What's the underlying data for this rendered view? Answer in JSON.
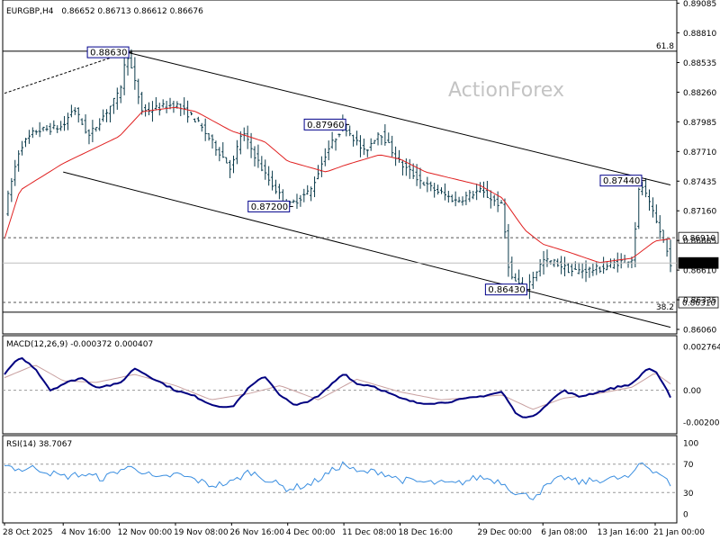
{
  "header": {
    "symbol": "EURGBP,H4",
    "ohlc": "0.86652 0.86713 0.86612 0.86676",
    "watermark": "ActionForex"
  },
  "chart_data": [
    {
      "type": "candlestick",
      "series_name": "EURGBP,H4",
      "x_ticks": [
        "28 Oct 2025",
        "4 Nov 16:00",
        "12 Nov 00:00",
        "19 Nov 08:00",
        "26 Nov 16:00",
        "4 Dec 00:00",
        "11 Dec 08:00",
        "18 Dec 16:00",
        "29 Dec 00:00",
        "6 Jan 08:00",
        "13 Jan 16:00",
        "21 Jan 00:00"
      ],
      "y_ticks": [
        "0.89085",
        "0.88810",
        "0.88535",
        "0.88260",
        "0.87985",
        "0.87710",
        "0.87435",
        "0.87160",
        "0.86885",
        "0.86610",
        "0.86335",
        "0.86060"
      ],
      "ylim": [
        0.8606,
        0.8909
      ],
      "close_path_waypoints": [
        {
          "x": "28 Oct 2025",
          "y": 0.8716
        },
        {
          "x": "30 Oct 2025",
          "y": 0.8775
        },
        {
          "x": "1 Nov 2025",
          "y": 0.879
        },
        {
          "x": "4 Nov 16:00",
          "y": 0.8794
        },
        {
          "x": "6 Nov 2025",
          "y": 0.8812
        },
        {
          "x": "8 Nov 2025",
          "y": 0.8785
        },
        {
          "x": "12 Nov 00:00",
          "y": 0.8825
        },
        {
          "x": "13 Nov 2025",
          "y": 0.8863
        },
        {
          "x": "15 Nov 2025",
          "y": 0.8808
        },
        {
          "x": "19 Nov 08:00",
          "y": 0.8815
        },
        {
          "x": "22 Nov 2025",
          "y": 0.88
        },
        {
          "x": "26 Nov 16:00",
          "y": 0.8755
        },
        {
          "x": "28 Nov 2025",
          "y": 0.879
        },
        {
          "x": "1 Dec 2025",
          "y": 0.875
        },
        {
          "x": "4 Dec 00:00",
          "y": 0.872
        },
        {
          "x": "7 Dec 2025",
          "y": 0.8735
        },
        {
          "x": "9 Dec 2025",
          "y": 0.877
        },
        {
          "x": "11 Dec 08:00",
          "y": 0.8796
        },
        {
          "x": "14 Dec 2025",
          "y": 0.877
        },
        {
          "x": "16 Dec 2025",
          "y": 0.879
        },
        {
          "x": "18 Dec 16:00",
          "y": 0.876
        },
        {
          "x": "22 Dec 2025",
          "y": 0.874
        },
        {
          "x": "26 Dec 2025",
          "y": 0.8725
        },
        {
          "x": "29 Dec 00:00",
          "y": 0.8735
        },
        {
          "x": "1 Jan 2026",
          "y": 0.872
        },
        {
          "x": "2 Jan 2026",
          "y": 0.8655
        },
        {
          "x": "4 Jan 2026",
          "y": 0.8643
        },
        {
          "x": "6 Jan 08:00",
          "y": 0.867
        },
        {
          "x": "8 Jan 2026",
          "y": 0.8668
        },
        {
          "x": "10 Jan 2026",
          "y": 0.866
        },
        {
          "x": "13 Jan 16:00",
          "y": 0.8662
        },
        {
          "x": "16 Jan 2026",
          "y": 0.8668
        },
        {
          "x": "18 Jan 2026",
          "y": 0.8672
        },
        {
          "x": "19 Jan 2026",
          "y": 0.8744
        },
        {
          "x": "21 Jan 00:00",
          "y": 0.8708
        },
        {
          "x": "22 Jan 2026",
          "y": 0.869
        },
        {
          "x": "23 Jan 2026",
          "y": 0.8668
        }
      ],
      "moving_average_waypoints": [
        {
          "x": "28 Oct 2025",
          "y": 0.869
        },
        {
          "x": "30 Oct 2025",
          "y": 0.8735
        },
        {
          "x": "4 Nov 16:00",
          "y": 0.876
        },
        {
          "x": "12 Nov 00:00",
          "y": 0.8785
        },
        {
          "x": "15 Nov 2025",
          "y": 0.8808
        },
        {
          "x": "19 Nov 08:00",
          "y": 0.8812
        },
        {
          "x": "22 Nov 2025",
          "y": 0.8808
        },
        {
          "x": "26 Nov 16:00",
          "y": 0.879
        },
        {
          "x": "1 Dec 2025",
          "y": 0.878
        },
        {
          "x": "4 Dec 00:00",
          "y": 0.8762
        },
        {
          "x": "9 Dec 2025",
          "y": 0.8752
        },
        {
          "x": "11 Dec 08:00",
          "y": 0.8758
        },
        {
          "x": "16 Dec 2025",
          "y": 0.8768
        },
        {
          "x": "18 Dec 16:00",
          "y": 0.8764
        },
        {
          "x": "22 Dec 2025",
          "y": 0.8752
        },
        {
          "x": "29 Dec 00:00",
          "y": 0.874
        },
        {
          "x": "1 Jan 2026",
          "y": 0.8728
        },
        {
          "x": "4 Jan 2026",
          "y": 0.8698
        },
        {
          "x": "6 Jan 08:00",
          "y": 0.8685
        },
        {
          "x": "10 Jan 2026",
          "y": 0.8677
        },
        {
          "x": "13 Jan 16:00",
          "y": 0.8668
        },
        {
          "x": "18 Jan 2026",
          "y": 0.8672
        },
        {
          "x": "21 Jan 00:00",
          "y": 0.8688
        },
        {
          "x": "23 Jan 2026",
          "y": 0.869
        }
      ],
      "labels": [
        {
          "text": "0.88630",
          "x": "13 Nov 2025",
          "y": 0.8863
        },
        {
          "text": "0.87960",
          "x": "11 Dec 08:00",
          "y": 0.8796
        },
        {
          "text": "0.87200",
          "x": "4 Dec 00:00",
          "y": 0.872
        },
        {
          "text": "0.87440",
          "x": "19 Jan 2026",
          "y": 0.8744
        },
        {
          "text": "0.86430",
          "x": "4 Jan 2026",
          "y": 0.8643
        }
      ],
      "levels": [
        {
          "text": "61.8",
          "y": 0.8864
        },
        {
          "text": "0.86910",
          "y": 0.8691,
          "style": "dashed"
        },
        {
          "text": "0.86676",
          "y": 0.86676,
          "style": "current"
        },
        {
          "text": "0.86310",
          "y": 0.8631,
          "style": "dashed"
        },
        {
          "text": "38.2",
          "y": 0.8622
        }
      ],
      "channel": {
        "upper": [
          {
            "x": "13 Nov 2025",
            "y": 0.8863
          },
          {
            "x": "23 Jan 2026",
            "y": 0.874
          }
        ],
        "lower": [
          {
            "x": "4 Nov 16:00",
            "y": 0.8752
          },
          {
            "x": "23 Jan 2026",
            "y": 0.8608
          }
        ],
        "prior_trendline": [
          {
            "x": "28 Oct 2025",
            "y": 0.8825
          },
          {
            "x": "13 Nov 2025",
            "y": 0.8863
          }
        ]
      }
    },
    {
      "type": "line",
      "title": "MACD(12,26,9) -0.000372 0.000407",
      "y_ticks": [
        "0.002764",
        "0.00",
        "-0.002005"
      ],
      "ylim": [
        -0.002005,
        0.002764
      ],
      "series": [
        {
          "name": "MACD",
          "values_at": [
            {
              "x": "28 Oct 2025",
              "y": 0.001
            },
            {
              "x": "30 Oct 2025",
              "y": 0.0021
            },
            {
              "x": "1 Nov 2025",
              "y": 0.0014
            },
            {
              "x": "3 Nov 2025",
              "y": 0.0
            },
            {
              "x": "4 Nov 16:00",
              "y": 0.0004
            },
            {
              "x": "7 Nov 2025",
              "y": 0.0008
            },
            {
              "x": "9 Nov 2025",
              "y": 0.0002
            },
            {
              "x": "12 Nov 00:00",
              "y": 0.0004
            },
            {
              "x": "14 Nov 2025",
              "y": 0.0014
            },
            {
              "x": "17 Nov 2025",
              "y": 0.0006
            },
            {
              "x": "19 Nov 08:00",
              "y": 0.0
            },
            {
              "x": "22 Nov 2025",
              "y": -0.0004
            },
            {
              "x": "24 Nov 2025",
              "y": -0.0009
            },
            {
              "x": "26 Nov 16:00",
              "y": -0.0011
            },
            {
              "x": "29 Nov 2025",
              "y": 0.0002
            },
            {
              "x": "1 Dec 2025",
              "y": 0.0009
            },
            {
              "x": "3 Dec 2025",
              "y": -0.0003
            },
            {
              "x": "5 Dec 2025",
              "y": -0.001
            },
            {
              "x": "8 Dec 2025",
              "y": -0.0004
            },
            {
              "x": "11 Dec 08:00",
              "y": 0.0011
            },
            {
              "x": "13 Dec 2025",
              "y": 0.0004
            },
            {
              "x": "15 Dec 2025",
              "y": 0.0003
            },
            {
              "x": "18 Dec 16:00",
              "y": -0.0005
            },
            {
              "x": "21 Dec 2025",
              "y": -0.0008
            },
            {
              "x": "24 Dec 2025",
              "y": -0.0008
            },
            {
              "x": "29 Dec 00:00",
              "y": -0.0004
            },
            {
              "x": "1 Jan 2026",
              "y": -0.0001
            },
            {
              "x": "3 Jan 2026",
              "y": -0.0016
            },
            {
              "x": "5 Jan 2026",
              "y": -0.0017
            },
            {
              "x": "7 Jan 2026",
              "y": -0.0008
            },
            {
              "x": "9 Jan 2026",
              "y": 0.0
            },
            {
              "x": "11 Jan 2026",
              "y": -0.0004
            },
            {
              "x": "13 Jan 16:00",
              "y": -0.0001
            },
            {
              "x": "16 Jan 2026",
              "y": 0.0002
            },
            {
              "x": "18 Jan 2026",
              "y": 0.0004
            },
            {
              "x": "20 Jan 2026",
              "y": 0.0014
            },
            {
              "x": "21 Jan 00:00",
              "y": 0.0012
            },
            {
              "x": "23 Jan 2026",
              "y": -0.0004
            }
          ]
        },
        {
          "name": "Signal",
          "values_at": [
            {
              "x": "28 Oct 2025",
              "y": 0.0008
            },
            {
              "x": "1 Nov 2025",
              "y": 0.0016
            },
            {
              "x": "4 Nov 16:00",
              "y": 0.0006
            },
            {
              "x": "9 Nov 2025",
              "y": 0.0005
            },
            {
              "x": "14 Nov 2025",
              "y": 0.001
            },
            {
              "x": "19 Nov 08:00",
              "y": 0.0003
            },
            {
              "x": "24 Nov 2025",
              "y": -0.0006
            },
            {
              "x": "29 Nov 2025",
              "y": -0.0002
            },
            {
              "x": "3 Dec 2025",
              "y": 0.0003
            },
            {
              "x": "8 Dec 2025",
              "y": -0.0006
            },
            {
              "x": "13 Dec 2025",
              "y": 0.0007
            },
            {
              "x": "18 Dec 16:00",
              "y": -0.0001
            },
            {
              "x": "24 Dec 2025",
              "y": -0.0006
            },
            {
              "x": "1 Jan 2026",
              "y": -0.0003
            },
            {
              "x": "5 Jan 2026",
              "y": -0.0012
            },
            {
              "x": "9 Jan 2026",
              "y": -0.0005
            },
            {
              "x": "13 Jan 16:00",
              "y": -0.0002
            },
            {
              "x": "18 Jan 2026",
              "y": 0.0002
            },
            {
              "x": "21 Jan 00:00",
              "y": 0.0011
            },
            {
              "x": "23 Jan 2026",
              "y": 0.0004
            }
          ]
        }
      ]
    },
    {
      "type": "line",
      "title": "RSI(14) 38.7067",
      "y_ticks": [
        "100",
        "70",
        "30",
        "0"
      ],
      "ylim": [
        0,
        100
      ],
      "levels": [
        70,
        30
      ],
      "series": [
        {
          "name": "RSI(14)",
          "values_at": [
            {
              "x": "28 Oct 2025",
              "y": 70
            },
            {
              "x": "30 Oct 2025",
              "y": 62
            },
            {
              "x": "1 Nov 2025",
              "y": 65
            },
            {
              "x": "4 Nov 16:00",
              "y": 52
            },
            {
              "x": "7 Nov 2025",
              "y": 56
            },
            {
              "x": "10 Nov 2025",
              "y": 50
            },
            {
              "x": "12 Nov 00:00",
              "y": 62
            },
            {
              "x": "14 Nov 2025",
              "y": 66
            },
            {
              "x": "17 Nov 2025",
              "y": 48
            },
            {
              "x": "19 Nov 08:00",
              "y": 56
            },
            {
              "x": "22 Nov 2025",
              "y": 48
            },
            {
              "x": "24 Nov 2025",
              "y": 40
            },
            {
              "x": "26 Nov 16:00",
              "y": 44
            },
            {
              "x": "29 Nov 2025",
              "y": 60
            },
            {
              "x": "1 Dec 2025",
              "y": 50
            },
            {
              "x": "4 Dec 00:00",
              "y": 35
            },
            {
              "x": "7 Dec 2025",
              "y": 42
            },
            {
              "x": "9 Dec 2025",
              "y": 55
            },
            {
              "x": "11 Dec 08:00",
              "y": 71
            },
            {
              "x": "13 Dec 2025",
              "y": 58
            },
            {
              "x": "16 Dec 2025",
              "y": 60
            },
            {
              "x": "18 Dec 16:00",
              "y": 48
            },
            {
              "x": "22 Dec 2025",
              "y": 44
            },
            {
              "x": "26 Dec 2025",
              "y": 42
            },
            {
              "x": "29 Dec 00:00",
              "y": 52
            },
            {
              "x": "1 Jan 2026",
              "y": 45
            },
            {
              "x": "3 Jan 2026",
              "y": 28
            },
            {
              "x": "5 Jan 2026",
              "y": 24
            },
            {
              "x": "7 Jan 2026",
              "y": 40
            },
            {
              "x": "9 Jan 2026",
              "y": 52
            },
            {
              "x": "11 Jan 2026",
              "y": 44
            },
            {
              "x": "13 Jan 16:00",
              "y": 48
            },
            {
              "x": "16 Jan 2026",
              "y": 50
            },
            {
              "x": "18 Jan 2026",
              "y": 52
            },
            {
              "x": "19 Jan 2026",
              "y": 74
            },
            {
              "x": "21 Jan 00:00",
              "y": 60
            },
            {
              "x": "22 Jan 2026",
              "y": 55
            },
            {
              "x": "23 Jan 2026",
              "y": 38.7
            }
          ]
        }
      ]
    }
  ],
  "colors": {
    "background": "#ffffff",
    "candles": "#0a3a4a",
    "moving_average": "#e02020",
    "macd_line": "#000080",
    "signal_line": "#c8a0a0",
    "rsi_line": "#3a8ee0",
    "grid_lines": "#000000",
    "level_dashed": "#555555",
    "label_box": "#00008b",
    "watermark": "#c4c4c4"
  }
}
